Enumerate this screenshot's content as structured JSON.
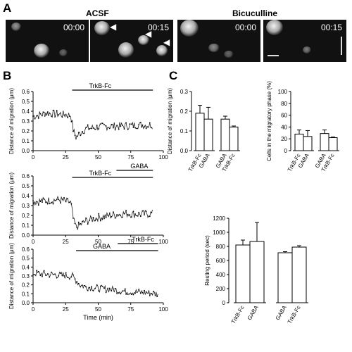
{
  "panel_labels": {
    "a": "A",
    "b": "B",
    "c": "C"
  },
  "panel_a": {
    "headers": {
      "left": "ACSF",
      "right": "Bicuculline"
    },
    "frames": [
      {
        "time": "00:00"
      },
      {
        "time": "00:15"
      },
      {
        "time": "00:00"
      },
      {
        "time": "00:15"
      }
    ]
  },
  "chart_data": [
    {
      "type": "line",
      "ylabel": "Distance of migration (μm)",
      "ylim": [
        0,
        0.6
      ],
      "yticks": [
        "0.0",
        "0.1",
        "0.2",
        "0.3",
        "0.4",
        "0.5",
        "0.6"
      ],
      "xlim": [
        0,
        100
      ],
      "xticks": [
        "0",
        "25",
        "50",
        "75",
        "100"
      ],
      "bars": [
        {
          "label": "TrkB-Fc",
          "start": 30,
          "end": 92
        }
      ],
      "series": [
        {
          "x": [
            0,
            10,
            20,
            29,
            31,
            33,
            36,
            40,
            50,
            60,
            70,
            80,
            90,
            92
          ],
          "y": [
            0.35,
            0.38,
            0.37,
            0.36,
            0.2,
            0.13,
            0.18,
            0.22,
            0.24,
            0.25,
            0.25,
            0.26,
            0.26,
            0.26
          ]
        }
      ]
    },
    {
      "type": "line",
      "ylabel": "Distance of migration (μm)",
      "ylim": [
        0,
        0.6
      ],
      "yticks": [
        "0.0",
        "0.1",
        "0.2",
        "0.3",
        "0.4",
        "0.5",
        "0.6"
      ],
      "xlim": [
        0,
        100
      ],
      "xticks": [
        "0",
        "25",
        "50",
        "75",
        "100"
      ],
      "bars": [
        {
          "label": "TrkB-Fc",
          "start": 30,
          "end": 92
        },
        {
          "label": "GABA",
          "start": 64,
          "end": 92
        }
      ],
      "series": [
        {
          "x": [
            0,
            10,
            20,
            29,
            31,
            33,
            36,
            40,
            50,
            60,
            70,
            80,
            90,
            92
          ],
          "y": [
            0.34,
            0.35,
            0.36,
            0.33,
            0.15,
            0.08,
            0.1,
            0.14,
            0.18,
            0.2,
            0.22,
            0.21,
            0.22,
            0.22
          ]
        }
      ]
    },
    {
      "type": "line",
      "ylabel": "Distance of migration (μm)",
      "ylim": [
        0,
        0.6
      ],
      "yticks": [
        "0.0",
        "0.1",
        "0.2",
        "0.3",
        "0.4",
        "0.5",
        "0.6"
      ],
      "xlim": [
        0,
        100
      ],
      "xticks": [
        "0",
        "25",
        "50",
        "75",
        "100"
      ],
      "xlabel": "Time (min)",
      "bars": [
        {
          "label": "GABA",
          "start": 33,
          "end": 96
        },
        {
          "label": "TrkB-Fc",
          "start": 65,
          "end": 96
        }
      ],
      "series": [
        {
          "x": [
            0,
            10,
            20,
            30,
            33,
            36,
            40,
            50,
            60,
            70,
            80,
            90,
            96
          ],
          "y": [
            0.33,
            0.32,
            0.31,
            0.3,
            0.25,
            0.2,
            0.18,
            0.16,
            0.15,
            0.13,
            0.12,
            0.11,
            0.1
          ]
        }
      ]
    },
    {
      "type": "bar",
      "ylabel": "Distance of migration (μm)",
      "ylim": [
        0,
        0.3
      ],
      "yticks": [
        "0.0",
        "0.1",
        "0.2",
        "0.3"
      ],
      "categories": [
        "TrkB-Fc",
        "GABA",
        "GABA",
        "TrkB-Fc"
      ],
      "values": [
        0.19,
        0.16,
        0.16,
        0.12
      ],
      "errors": [
        0.04,
        0.06,
        0.015,
        0.005
      ]
    },
    {
      "type": "bar",
      "ylabel": "Cells in the migratory phase (%)",
      "ylim": [
        0,
        100
      ],
      "yticks": [
        "0",
        "20",
        "40",
        "60",
        "80",
        "100"
      ],
      "categories": [
        "TrkB-Fc",
        "GABA",
        "GABA",
        "TrkB-Fc"
      ],
      "values": [
        28,
        24,
        29,
        22
      ],
      "errors": [
        7,
        10,
        6,
        1
      ]
    },
    {
      "type": "bar",
      "ylabel": "Resting period (sec)",
      "ylim": [
        0,
        1200
      ],
      "yticks": [
        "0",
        "200",
        "400",
        "600",
        "800",
        "1000",
        "1200"
      ],
      "categories": [
        "TrkB-Fc",
        "GABA",
        "GABA",
        "TrkB-Fc"
      ],
      "values": [
        820,
        870,
        710,
        790
      ],
      "errors": [
        70,
        270,
        15,
        20
      ]
    }
  ]
}
